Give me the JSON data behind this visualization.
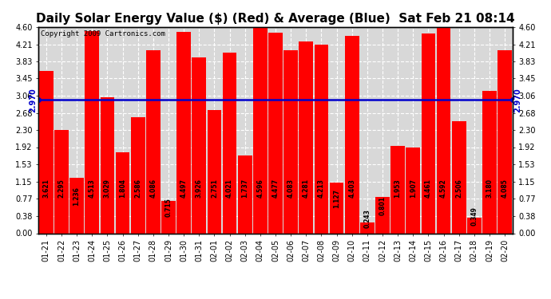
{
  "title": "Daily Solar Energy Value ($) (Red) & Average (Blue)  Sat Feb 21 08:14",
  "copyright": "Copyright 2009 Cartronics.com",
  "average": 2.97,
  "categories": [
    "01-21",
    "01-22",
    "01-23",
    "01-24",
    "01-25",
    "01-26",
    "01-27",
    "01-28",
    "01-29",
    "01-30",
    "01-31",
    "02-01",
    "02-02",
    "02-03",
    "02-04",
    "02-05",
    "02-06",
    "02-07",
    "02-08",
    "02-09",
    "02-10",
    "02-11",
    "02-12",
    "02-13",
    "02-14",
    "02-15",
    "02-16",
    "02-17",
    "02-18",
    "02-19",
    "02-20"
  ],
  "values": [
    3.621,
    2.295,
    1.236,
    4.513,
    3.029,
    1.804,
    2.586,
    4.086,
    0.715,
    4.497,
    3.926,
    2.751,
    4.021,
    1.737,
    4.596,
    4.477,
    4.083,
    4.281,
    4.213,
    1.127,
    4.403,
    0.243,
    0.801,
    1.953,
    1.907,
    4.461,
    4.592,
    2.506,
    0.349,
    3.18,
    4.085
  ],
  "ylim": [
    0.0,
    4.6
  ],
  "yticks": [
    0.0,
    0.38,
    0.77,
    1.15,
    1.53,
    1.92,
    2.3,
    2.68,
    3.06,
    3.45,
    3.83,
    4.21,
    4.6
  ],
  "bar_color": "#ff0000",
  "line_color": "#0000cc",
  "bg_color": "#ffffff",
  "plot_bg_color": "#d8d8d8",
  "grid_color": "#ffffff",
  "title_fontsize": 11,
  "copyright_fontsize": 6.5,
  "bar_label_fontsize": 5.5,
  "tick_fontsize": 7,
  "avg_label": "2.970"
}
